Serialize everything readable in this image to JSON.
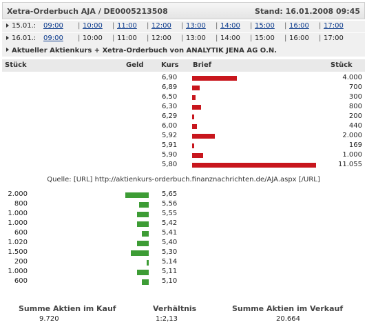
{
  "header": {
    "title": "Xetra-Orderbuch AJA / DE0005213508",
    "stand": "Stand: 16.01.2008 09:45"
  },
  "times_rows": [
    {
      "date": "15.01.:",
      "times": [
        {
          "label": "09:00",
          "link": true
        },
        {
          "label": "10:00",
          "link": true
        },
        {
          "label": "11:00",
          "link": true
        },
        {
          "label": "12:00",
          "link": true
        },
        {
          "label": "13:00",
          "link": true
        },
        {
          "label": "14:00",
          "link": true
        },
        {
          "label": "15:00",
          "link": true
        },
        {
          "label": "16:00",
          "link": true
        },
        {
          "label": "17:00",
          "link": true
        }
      ]
    },
    {
      "date": "16.01.:",
      "times": [
        {
          "label": "09:00",
          "link": true
        },
        {
          "label": "10:00",
          "link": false
        },
        {
          "label": "11:00",
          "link": false
        },
        {
          "label": "12:00",
          "link": false
        },
        {
          "label": "13:00",
          "link": false
        },
        {
          "label": "14:00",
          "link": false
        },
        {
          "label": "15:00",
          "link": false
        },
        {
          "label": "16:00",
          "link": false
        },
        {
          "label": "17:00",
          "link": false
        }
      ]
    }
  ],
  "info_label": "Aktueller Aktienkurs + Xetra-Orderbuch von ANALYTIK JENA AG O.N.",
  "columns": {
    "stueck_left": "Stück",
    "geld": "Geld",
    "kurs": "Kurs",
    "brief": "Brief",
    "stueck_right": "Stück"
  },
  "chart_data": {
    "type": "bar",
    "ask": [
      {
        "price": "6,90",
        "qty": "4.000",
        "value": 4000
      },
      {
        "price": "6,89",
        "qty": "700",
        "value": 700
      },
      {
        "price": "6,50",
        "qty": "300",
        "value": 300
      },
      {
        "price": "6,30",
        "qty": "800",
        "value": 800
      },
      {
        "price": "6,29",
        "qty": "200",
        "value": 200
      },
      {
        "price": "6,00",
        "qty": "440",
        "value": 440
      },
      {
        "price": "5,92",
        "qty": "2.000",
        "value": 2000
      },
      {
        "price": "5,91",
        "qty": "169",
        "value": 169
      },
      {
        "price": "5,90",
        "qty": "1.000",
        "value": 1000
      },
      {
        "price": "5,80",
        "qty": "11.055",
        "value": 11055
      }
    ],
    "bid": [
      {
        "price": "5,65",
        "qty": "2.000",
        "value": 2000
      },
      {
        "price": "5,56",
        "qty": "800",
        "value": 800
      },
      {
        "price": "5,55",
        "qty": "1.000",
        "value": 1000
      },
      {
        "price": "5,42",
        "qty": "1.000",
        "value": 1000
      },
      {
        "price": "5,41",
        "qty": "600",
        "value": 600
      },
      {
        "price": "5,40",
        "qty": "1.020",
        "value": 1020
      },
      {
        "price": "5,30",
        "qty": "1.500",
        "value": 1500
      },
      {
        "price": "5,14",
        "qty": "200",
        "value": 200
      },
      {
        "price": "5,11",
        "qty": "1.000",
        "value": 1000
      },
      {
        "price": "5,10",
        "qty": "600",
        "value": 600
      }
    ],
    "colors": {
      "ask": "#c8161d",
      "bid": "#3d9c35"
    }
  },
  "quelle": "Quelle: [URL] http://aktienkurs-orderbuch.finanznachrichten.de/AJA.aspx [/URL]",
  "summary": {
    "kauf_label": "Summe Aktien im Kauf",
    "kauf_value": "9.720",
    "verh_label": "Verhältnis",
    "verh_value": "1:2,13",
    "verkauf_label": "Summe Aktien im Verkauf",
    "verkauf_value": "20.664"
  }
}
